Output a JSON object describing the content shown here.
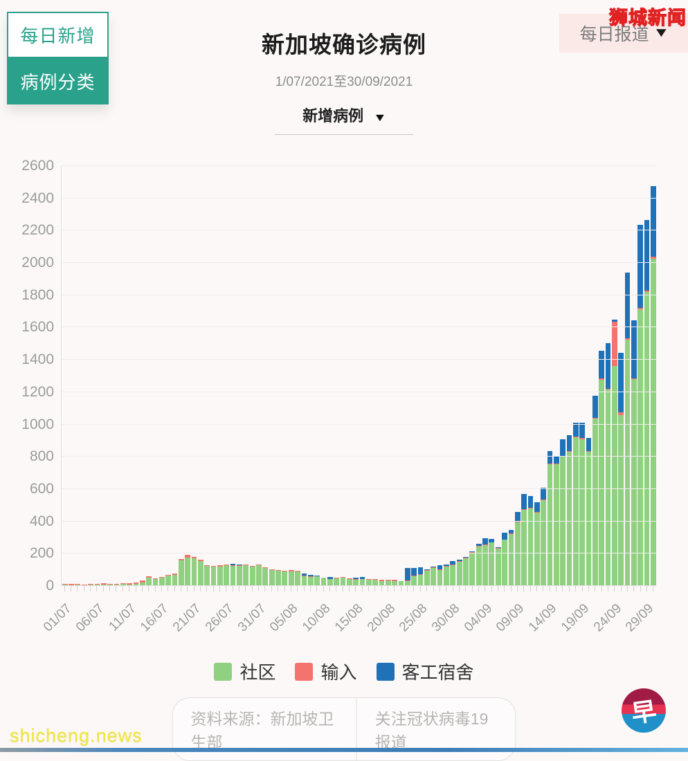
{
  "controls": {
    "tab_daily": "每日新增",
    "tab_category": "病例分类",
    "dropdown_label": "新增病例",
    "report_label": "每日报道"
  },
  "header": {
    "title": "新加坡确诊病例",
    "date_range": "1/07/2021至30/09/2021"
  },
  "watermarks": {
    "top_right": "狮城新闻",
    "bottom_left": "shicheng.news",
    "logo_char": "早"
  },
  "footer": {
    "source_label": "资料来源：新加坡卫生部",
    "coverage_label": "关注冠状病毒19报道"
  },
  "chart_data": {
    "type": "bar",
    "stacked": true,
    "title": "新加坡确诊病例",
    "xlabel": "",
    "ylabel": "",
    "ylim": [
      0,
      2600
    ],
    "ytick_step": 200,
    "grid": true,
    "legend_position": "bottom",
    "x_label_every": 5,
    "x": [
      "01/07",
      "02/07",
      "03/07",
      "04/07",
      "05/07",
      "06/07",
      "07/07",
      "08/07",
      "09/07",
      "10/07",
      "11/07",
      "12/07",
      "13/07",
      "14/07",
      "15/07",
      "16/07",
      "17/07",
      "18/07",
      "19/07",
      "20/07",
      "21/07",
      "22/07",
      "23/07",
      "24/07",
      "25/07",
      "26/07",
      "27/07",
      "28/07",
      "29/07",
      "30/07",
      "31/07",
      "01/08",
      "02/08",
      "03/08",
      "04/08",
      "05/08",
      "06/08",
      "07/08",
      "08/08",
      "09/08",
      "10/08",
      "11/08",
      "12/08",
      "13/08",
      "14/08",
      "15/08",
      "16/08",
      "17/08",
      "18/08",
      "19/08",
      "20/08",
      "21/08",
      "22/08",
      "23/08",
      "24/08",
      "25/08",
      "26/08",
      "27/08",
      "28/08",
      "29/08",
      "30/08",
      "31/08",
      "01/09",
      "02/09",
      "03/09",
      "04/09",
      "05/09",
      "06/09",
      "07/09",
      "08/09",
      "09/09",
      "10/09",
      "11/09",
      "12/09",
      "13/09",
      "14/09",
      "15/09",
      "16/09",
      "17/09",
      "18/09",
      "19/09",
      "20/09",
      "21/09",
      "22/09",
      "23/09",
      "24/09",
      "25/09",
      "26/09",
      "27/09",
      "28/09",
      "29/09",
      "30/09"
    ],
    "series": [
      {
        "name": "社区",
        "color": "#8fd180",
        "values": [
          8,
          6,
          9,
          5,
          7,
          8,
          10,
          9,
          8,
          12,
          10,
          13,
          20,
          52,
          42,
          51,
          63,
          70,
          158,
          175,
          170,
          155,
          124,
          119,
          120,
          127,
          126,
          125,
          128,
          119,
          127,
          112,
          98,
          95,
          90,
          92,
          89,
          60,
          55,
          58,
          50,
          42,
          46,
          50,
          44,
          40,
          42,
          40,
          37,
          32,
          35,
          32,
          28,
          30,
          62,
          68,
          93,
          110,
          100,
          120,
          128,
          150,
          170,
          205,
          245,
          252,
          268,
          230,
          285,
          322,
          395,
          470,
          478,
          455,
          532,
          755,
          752,
          800,
          832,
          920,
          910,
          830,
          1038,
          1276,
          1216,
          1363,
          1058,
          1526,
          1279,
          1713,
          1820,
          2028
        ]
      },
      {
        "name": "输入",
        "color": "#f5736e",
        "values": [
          5,
          5,
          6,
          5,
          6,
          6,
          6,
          6,
          5,
          6,
          7,
          7,
          15,
          8,
          6,
          6,
          7,
          8,
          8,
          16,
          10,
          8,
          6,
          6,
          7,
          5,
          4,
          5,
          7,
          6,
          6,
          5,
          5,
          5,
          5,
          5,
          4,
          4,
          4,
          4,
          3,
          3,
          4,
          5,
          4,
          3,
          3,
          5,
          4,
          5,
          4,
          5,
          4,
          3,
          3,
          3,
          4,
          5,
          5,
          5,
          4,
          5,
          4,
          5,
          5,
          5,
          4,
          4,
          4,
          4,
          4,
          5,
          5,
          5,
          5,
          5,
          6,
          5,
          5,
          5,
          6,
          7,
          5,
          8,
          5,
          272,
          17,
          8,
          8,
          8,
          8,
          10
        ]
      },
      {
        "name": "客工宿舍",
        "color": "#1f72b7",
        "values": [
          0,
          0,
          0,
          0,
          0,
          0,
          0,
          0,
          0,
          0,
          0,
          0,
          0,
          0,
          0,
          0,
          0,
          0,
          0,
          0,
          0,
          0,
          0,
          0,
          0,
          3,
          6,
          3,
          0,
          0,
          0,
          0,
          2,
          0,
          0,
          0,
          2,
          12,
          11,
          4,
          0,
          9,
          0,
          0,
          0,
          10,
          12,
          0,
          0,
          0,
          0,
          0,
          0,
          78,
          46,
          44,
          8,
          5,
          25,
          8,
          23,
          6,
          6,
          6,
          10,
          40,
          20,
          7,
          43,
          23,
          58,
          93,
          72,
          60,
          70,
          77,
          49,
          105,
          98,
          84,
          96,
          80,
          135,
          173,
          283,
          15,
          368,
          405,
          360,
          515,
          440,
          440
        ]
      }
    ]
  }
}
